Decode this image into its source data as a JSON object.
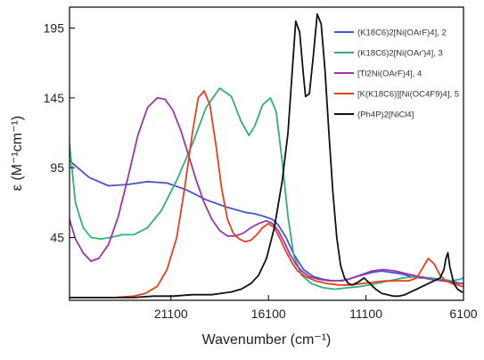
{
  "chart_data": {
    "type": "line",
    "xlabel": "Wavenumber (cm⁻¹)",
    "ylabel": "ε (M⁻¹cm⁻¹)",
    "xlim": [
      26300,
      6100
    ],
    "x_reversed": true,
    "ylim": [
      0,
      210
    ],
    "x_ticks": [
      21100,
      16100,
      11100,
      6100
    ],
    "y_ticks": [
      45,
      95,
      145,
      195
    ],
    "x_tick_labels": [
      "21100",
      "16100",
      "11100",
      "6100"
    ],
    "y_tick_labels": [
      "45",
      "95",
      "145",
      "195"
    ],
    "grid": false,
    "legend_position": "top-right",
    "series": [
      {
        "name": "(K18C6)2[Ni(OArF)4], 2",
        "color": "#4a55c8",
        "x": [
          26300,
          25300,
          24300,
          23300,
          22300,
          21300,
          20300,
          19300,
          18300,
          17300,
          16800,
          16300,
          15900,
          15600,
          15200,
          14800,
          14300,
          13800,
          13300,
          12800,
          12300,
          11800,
          11300,
          10800,
          10300,
          9800,
          9300,
          8800,
          8300,
          7800,
          7300,
          6900,
          6500,
          6300,
          6100
        ],
        "y": [
          100,
          88,
          82,
          83,
          85,
          84,
          79,
          72,
          67,
          63,
          62,
          60,
          58,
          54,
          45,
          33,
          22,
          17,
          15,
          14,
          14,
          16,
          18,
          20,
          21,
          20,
          19,
          17,
          16,
          16,
          15,
          14,
          13,
          12,
          12
        ]
      },
      {
        "name": "(K18C6)2[Ni(OAr')4], 3",
        "color": "#2fb07a",
        "x": [
          26300,
          26000,
          25600,
          25200,
          24700,
          24200,
          23600,
          23000,
          22300,
          21600,
          20800,
          20000,
          19300,
          18600,
          18000,
          17500,
          17100,
          16800,
          16400,
          16000,
          15700,
          15400,
          15100,
          14800,
          14400,
          13900,
          13300,
          12700,
          12000,
          11300,
          10600,
          9900,
          9200,
          8500,
          7800,
          7200,
          6700,
          6300,
          6100
        ],
        "y": [
          112,
          70,
          52,
          45,
          44,
          45,
          47,
          47,
          52,
          64,
          86,
          112,
          138,
          152,
          146,
          128,
          118,
          125,
          140,
          145,
          135,
          100,
          60,
          32,
          18,
          12,
          9,
          8,
          9,
          10,
          12,
          14,
          16,
          17,
          16,
          15,
          14,
          15,
          16
        ]
      },
      {
        "name": "[Tl2Ni(OArF)4], 4",
        "color": "#9c34ad",
        "x": [
          26300,
          26000,
          25600,
          25200,
          24800,
          24300,
          23800,
          23300,
          22800,
          22300,
          21800,
          21400,
          21000,
          20600,
          20200,
          19800,
          19400,
          19000,
          18600,
          18200,
          17800,
          17400,
          17000,
          16600,
          16200,
          15900,
          15600,
          15300,
          15000,
          14700,
          14400,
          14000,
          13500,
          13000,
          12500,
          12000,
          11400,
          10800,
          10200,
          9600,
          9000,
          8400,
          7800,
          7200,
          6700,
          6300,
          6100
        ],
        "y": [
          58,
          44,
          34,
          28,
          30,
          40,
          60,
          88,
          118,
          138,
          145,
          144,
          136,
          122,
          104,
          86,
          70,
          58,
          50,
          46,
          46,
          48,
          52,
          55,
          57,
          55,
          50,
          42,
          33,
          26,
          21,
          17,
          15,
          14,
          14,
          15,
          18,
          21,
          22,
          21,
          19,
          17,
          15,
          14,
          13,
          12,
          12
        ]
      },
      {
        "name": "[K(K18C6)][Ni(OC4F9)4], 5",
        "color": "#e8401c",
        "x": [
          26300,
          25000,
          24000,
          23000,
          22400,
          21800,
          21300,
          20800,
          20400,
          20000,
          19700,
          19400,
          19100,
          18800,
          18500,
          18200,
          17900,
          17600,
          17300,
          17000,
          16700,
          16400,
          16100,
          15800,
          15500,
          15200,
          14900,
          14600,
          14200,
          13700,
          13100,
          12500,
          11900,
          11300,
          10700,
          10100,
          9500,
          8900,
          8500,
          8200,
          7900,
          7600,
          7300,
          7000,
          6700,
          6400,
          6200,
          6100
        ],
        "y": [
          2,
          2,
          2,
          3,
          5,
          10,
          22,
          45,
          80,
          120,
          145,
          150,
          140,
          112,
          80,
          58,
          48,
          44,
          42,
          43,
          47,
          52,
          55,
          52,
          44,
          35,
          27,
          21,
          17,
          14,
          12,
          11,
          11,
          12,
          13,
          14,
          14,
          14,
          16,
          23,
          30,
          26,
          18,
          14,
          12,
          11,
          10,
          10
        ]
      },
      {
        "name": "(Ph4P)2[NiCl4]",
        "color": "#111111",
        "x": [
          26300,
          25000,
          24000,
          23000,
          22000,
          21000,
          20000,
          19000,
          18000,
          17500,
          17000,
          16600,
          16200,
          15800,
          15400,
          15100,
          14900,
          14700,
          14500,
          14300,
          14200,
          14000,
          13800,
          13600,
          13400,
          13200,
          13000,
          12800,
          12600,
          12400,
          12200,
          12000,
          11800,
          11500,
          11200,
          10900,
          10600,
          10300,
          10000,
          9700,
          9400,
          9100,
          8800,
          8500,
          8200,
          7900,
          7600,
          7300,
          7100,
          7000,
          6900,
          6800,
          6600,
          6400,
          6200,
          6100
        ],
        "y": [
          2,
          2,
          2,
          2,
          3,
          3,
          4,
          4,
          6,
          8,
          12,
          18,
          30,
          52,
          85,
          120,
          160,
          200,
          192,
          160,
          146,
          148,
          175,
          205,
          198,
          165,
          120,
          78,
          45,
          25,
          16,
          12,
          11,
          13,
          16,
          12,
          8,
          5,
          4,
          3,
          3,
          4,
          6,
          8,
          10,
          12,
          14,
          16,
          22,
          30,
          34,
          24,
          12,
          8,
          6,
          6
        ]
      }
    ]
  }
}
